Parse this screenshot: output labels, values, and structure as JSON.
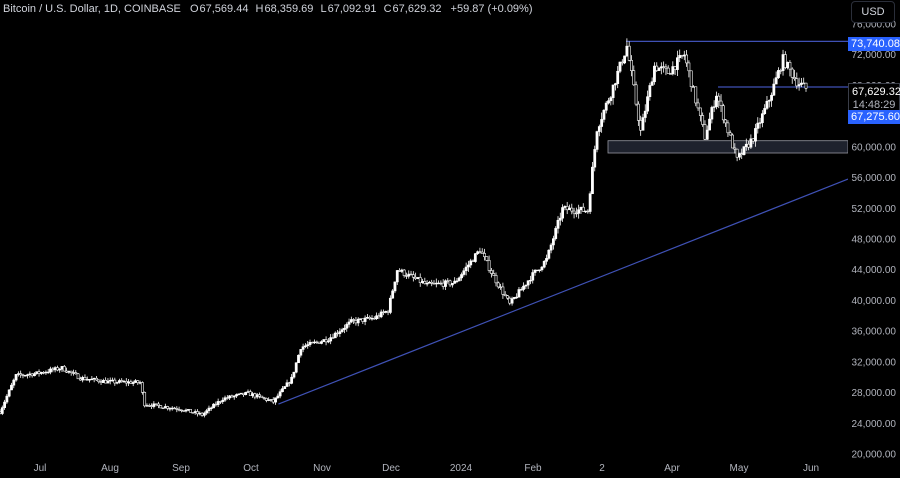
{
  "legend": {
    "symbol": "Bitcoin / U.S. Dollar, 1D, COINBASE",
    "o_label": "O",
    "o_value": "67,569.44",
    "h_label": "H",
    "h_value": "68,359.69",
    "l_label": "L",
    "l_value": "67,092.91",
    "c_label": "C",
    "c_value": "67,629.32",
    "change": "+59.87 (+0.09%)"
  },
  "currency": "USD",
  "colors": {
    "background": "#000000",
    "candle": "#ffffff",
    "trendline": "#3f51b5",
    "zone": "#1e222d",
    "tag": "#2962ff"
  },
  "price_tags": {
    "high_line": "73,740.08",
    "last_price": "67,629.32",
    "countdown": "14:48:29",
    "prev_close": "67,275.60"
  },
  "chart_data": {
    "type": "candlestick",
    "x_ticks": [
      "Jul",
      "Aug",
      "Sep",
      "Oct",
      "Nov",
      "Dec",
      "2024",
      "Feb",
      "2",
      "Apr",
      "May",
      "Jun"
    ],
    "y_ticks": [
      "76,000.00",
      "72,000.00",
      "68,000.00",
      "64,000.00",
      "60,000.00",
      "56,000.00",
      "52,000.00",
      "48,000.00",
      "44,000.00",
      "40,000.00",
      "36,000.00",
      "32,000.00",
      "28,000.00",
      "24,000.00",
      "20,000.00"
    ],
    "ylim": [
      20000,
      76000
    ],
    "drawings": {
      "horizontal_resistance": 73740,
      "neckline": 67800,
      "support_zone": [
        59200,
        60800
      ],
      "trendline": [
        [
          "2023-10-16",
          26500
        ],
        [
          "2024-06-03",
          55800
        ]
      ]
    },
    "close_path": [
      [
        "2023-06-15",
        25500
      ],
      [
        "2023-06-22",
        30200
      ],
      [
        "2023-07-01",
        30500
      ],
      [
        "2023-07-12",
        31200
      ],
      [
        "2023-07-20",
        29900
      ],
      [
        "2023-08-01",
        29400
      ],
      [
        "2023-08-15",
        29300
      ],
      [
        "2023-08-17",
        26500
      ],
      [
        "2023-09-01",
        25900
      ],
      [
        "2023-09-11",
        25100
      ],
      [
        "2023-09-20",
        27200
      ],
      [
        "2023-10-01",
        27900
      ],
      [
        "2023-10-12",
        26800
      ],
      [
        "2023-10-20",
        29800
      ],
      [
        "2023-10-24",
        33900
      ],
      [
        "2023-11-05",
        35000
      ],
      [
        "2023-11-15",
        37200
      ],
      [
        "2023-11-25",
        37700
      ],
      [
        "2023-12-01",
        38700
      ],
      [
        "2023-12-05",
        44000
      ],
      [
        "2023-12-18",
        42000
      ],
      [
        "2023-12-30",
        42300
      ],
      [
        "2024-01-10",
        46600
      ],
      [
        "2024-01-16",
        43100
      ],
      [
        "2024-01-23",
        39500
      ],
      [
        "2024-02-01",
        43000
      ],
      [
        "2024-02-08",
        45300
      ],
      [
        "2024-02-15",
        51900
      ],
      [
        "2024-02-26",
        51700
      ],
      [
        "2024-03-01",
        62400
      ],
      [
        "2024-03-07",
        67000
      ],
      [
        "2024-03-14",
        73100
      ],
      [
        "2024-03-20",
        62000
      ],
      [
        "2024-03-26",
        70500
      ],
      [
        "2024-04-01",
        69700
      ],
      [
        "2024-04-08",
        72000
      ],
      [
        "2024-04-17",
        61300
      ],
      [
        "2024-04-22",
        66900
      ],
      [
        "2024-05-01",
        58300
      ],
      [
        "2024-05-08",
        61200
      ],
      [
        "2024-05-15",
        66200
      ],
      [
        "2024-05-21",
        71400
      ],
      [
        "2024-05-27",
        68500
      ],
      [
        "2024-05-31",
        67600
      ]
    ]
  }
}
